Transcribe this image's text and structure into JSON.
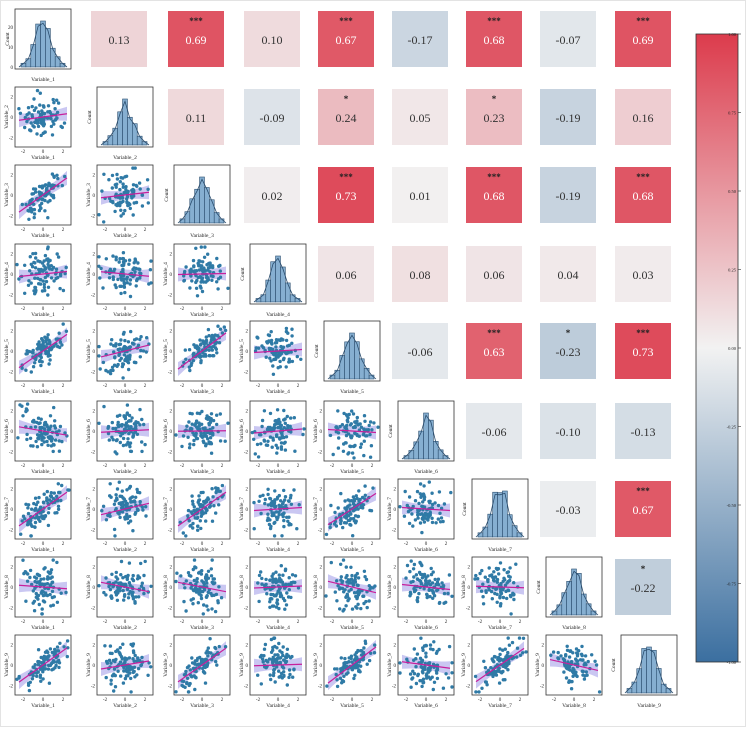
{
  "chart_data": {
    "type": "pairplot-correlation-matrix",
    "variables": [
      "Variable_1",
      "Variable_2",
      "Variable_3",
      "Variable_4",
      "Variable_5",
      "Variable_6",
      "Variable_7",
      "Variable_8",
      "Variable_9"
    ],
    "diag_ylabel": "Count",
    "correlations": [
      {
        "row": 1,
        "col": 2,
        "r": 0.13,
        "label": "0.13",
        "stars": ""
      },
      {
        "row": 1,
        "col": 3,
        "r": 0.69,
        "label": "0.69",
        "stars": "***"
      },
      {
        "row": 1,
        "col": 4,
        "r": 0.1,
        "label": "0.10",
        "stars": ""
      },
      {
        "row": 1,
        "col": 5,
        "r": 0.67,
        "label": "0.67",
        "stars": "***"
      },
      {
        "row": 1,
        "col": 6,
        "r": -0.17,
        "label": "-0.17",
        "stars": ""
      },
      {
        "row": 1,
        "col": 7,
        "r": 0.68,
        "label": "0.68",
        "stars": "***"
      },
      {
        "row": 1,
        "col": 8,
        "r": -0.07,
        "label": "-0.07",
        "stars": ""
      },
      {
        "row": 1,
        "col": 9,
        "r": 0.69,
        "label": "0.69",
        "stars": "***"
      },
      {
        "row": 2,
        "col": 3,
        "r": 0.11,
        "label": "0.11",
        "stars": ""
      },
      {
        "row": 2,
        "col": 4,
        "r": -0.09,
        "label": "-0.09",
        "stars": ""
      },
      {
        "row": 2,
        "col": 5,
        "r": 0.24,
        "label": "0.24",
        "stars": "*"
      },
      {
        "row": 2,
        "col": 6,
        "r": 0.05,
        "label": "0.05",
        "stars": ""
      },
      {
        "row": 2,
        "col": 7,
        "r": 0.23,
        "label": "0.23",
        "stars": "*"
      },
      {
        "row": 2,
        "col": 8,
        "r": -0.19,
        "label": "-0.19",
        "stars": ""
      },
      {
        "row": 2,
        "col": 9,
        "r": 0.16,
        "label": "0.16",
        "stars": ""
      },
      {
        "row": 3,
        "col": 4,
        "r": 0.02,
        "label": "0.02",
        "stars": ""
      },
      {
        "row": 3,
        "col": 5,
        "r": 0.73,
        "label": "0.73",
        "stars": "***"
      },
      {
        "row": 3,
        "col": 6,
        "r": 0.01,
        "label": "0.01",
        "stars": ""
      },
      {
        "row": 3,
        "col": 7,
        "r": 0.68,
        "label": "0.68",
        "stars": "***"
      },
      {
        "row": 3,
        "col": 8,
        "r": -0.19,
        "label": "-0.19",
        "stars": ""
      },
      {
        "row": 3,
        "col": 9,
        "r": 0.68,
        "label": "0.68",
        "stars": "***"
      },
      {
        "row": 4,
        "col": 5,
        "r": 0.06,
        "label": "0.06",
        "stars": ""
      },
      {
        "row": 4,
        "col": 6,
        "r": 0.08,
        "label": "0.08",
        "stars": ""
      },
      {
        "row": 4,
        "col": 7,
        "r": 0.06,
        "label": "0.06",
        "stars": ""
      },
      {
        "row": 4,
        "col": 8,
        "r": 0.04,
        "label": "0.04",
        "stars": ""
      },
      {
        "row": 4,
        "col": 9,
        "r": 0.03,
        "label": "0.03",
        "stars": ""
      },
      {
        "row": 5,
        "col": 6,
        "r": -0.06,
        "label": "-0.06",
        "stars": ""
      },
      {
        "row": 5,
        "col": 7,
        "r": 0.63,
        "label": "0.63",
        "stars": "***"
      },
      {
        "row": 5,
        "col": 8,
        "r": -0.23,
        "label": "-0.23",
        "stars": "*"
      },
      {
        "row": 5,
        "col": 9,
        "r": 0.73,
        "label": "0.73",
        "stars": "***"
      },
      {
        "row": 6,
        "col": 7,
        "r": -0.06,
        "label": "-0.06",
        "stars": ""
      },
      {
        "row": 6,
        "col": 8,
        "r": -0.1,
        "label": "-0.10",
        "stars": ""
      },
      {
        "row": 6,
        "col": 9,
        "r": -0.13,
        "label": "-0.13",
        "stars": ""
      },
      {
        "row": 7,
        "col": 8,
        "r": -0.03,
        "label": "-0.03",
        "stars": ""
      },
      {
        "row": 7,
        "col": 9,
        "r": 0.67,
        "label": "0.67",
        "stars": "***"
      },
      {
        "row": 8,
        "col": 9,
        "r": -0.22,
        "label": "-0.22",
        "stars": "*"
      }
    ],
    "axis_ticks": [
      "-2",
      "0",
      "2"
    ],
    "diag_first_yticks": [
      "0",
      "10",
      "20"
    ],
    "colorbar": {
      "vmin": -1.0,
      "vmax": 1.0,
      "ticks": [
        "1.00",
        "0.75",
        "0.50",
        "0.25",
        "0.00",
        "-0.25",
        "-0.50",
        "-0.75",
        "-1.00"
      ],
      "colors": {
        "negative": "#3b6fa0",
        "neutral": "#f2f2f2",
        "positive": "#dc3b4c"
      }
    },
    "colors": {
      "hist_fill": "#86afd1",
      "hist_edge": "#2a4d6e",
      "scatter_point": "#2f7aa6",
      "fit_line": "#c81f9b",
      "fit_band": "#b8b4ee"
    }
  }
}
